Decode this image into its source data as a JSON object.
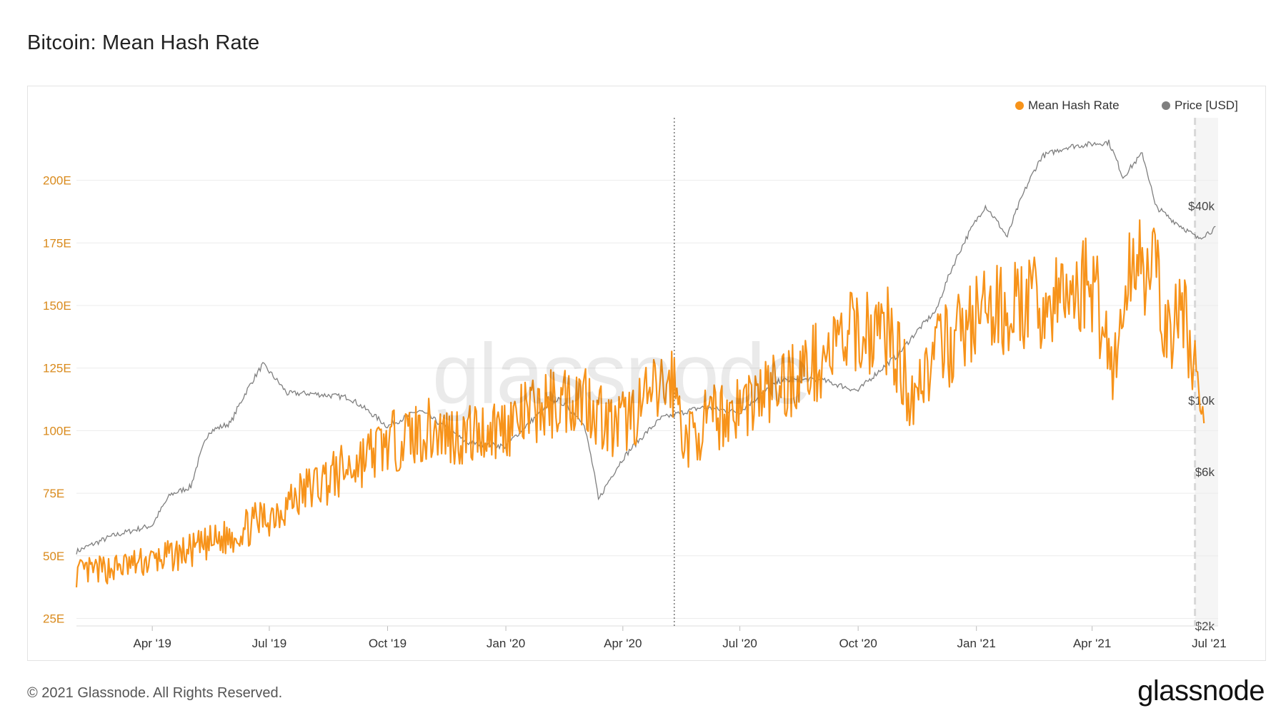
{
  "title": "Bitcoin: Mean Hash Rate",
  "legend": [
    {
      "label": "Mean Hash Rate",
      "color": "#f7931a"
    },
    {
      "label": "Price [USD]",
      "color": "#7f7f7f"
    }
  ],
  "footer": {
    "copyright": "© 2021 Glassnode. All Rights Reserved.",
    "logo": "glassnode"
  },
  "watermark": "glassnode",
  "colors": {
    "hash": "#f7931a",
    "price": "#7f7f7f",
    "grid": "#ececec"
  },
  "chart_data": {
    "type": "line",
    "x_ticks": [
      "Apr '19",
      "Jul '19",
      "Oct '19",
      "Jan '20",
      "Apr '20",
      "Jul '20",
      "Oct '20",
      "Jan '21",
      "Apr '21",
      "Jul '21"
    ],
    "y_left_ticks": [
      "25E",
      "50E",
      "75E",
      "100E",
      "125E",
      "150E",
      "175E",
      "200E"
    ],
    "y_left_values": [
      25,
      50,
      75,
      100,
      125,
      150,
      175,
      200
    ],
    "y_right_ticks": [
      "$2k",
      "$6k",
      "$10k",
      "$40k"
    ],
    "y_right_values": [
      2000,
      6000,
      10000,
      40000
    ],
    "y_left_scale": "linear",
    "y_right_scale": "log",
    "grid": true,
    "legend_position": "top-right",
    "x_range": [
      "2019-02-01",
      "2021-07-08"
    ],
    "ylim_left": [
      22,
      225
    ],
    "ylim_right": [
      2000,
      75000
    ],
    "annotations": [
      {
        "type": "vertical-dotted-line",
        "date": "2020-05-11"
      },
      {
        "type": "vertical-dashed-line",
        "date": "2021-06-20"
      }
    ],
    "series": [
      {
        "name": "Mean Hash Rate",
        "axis": "left",
        "color": "#f7931a",
        "points": [
          [
            "2019-02-01",
            43
          ],
          [
            "2019-03-01",
            45
          ],
          [
            "2019-04-01",
            48
          ],
          [
            "2019-05-01",
            52
          ],
          [
            "2019-06-01",
            58
          ],
          [
            "2019-07-01",
            66
          ],
          [
            "2019-08-01",
            77
          ],
          [
            "2019-09-01",
            85
          ],
          [
            "2019-10-01",
            95
          ],
          [
            "2019-11-01",
            100
          ],
          [
            "2019-12-01",
            98
          ],
          [
            "2020-01-01",
            102
          ],
          [
            "2020-02-01",
            110
          ],
          [
            "2020-03-01",
            115
          ],
          [
            "2020-03-25",
            100
          ],
          [
            "2020-04-20",
            112
          ],
          [
            "2020-05-10",
            120
          ],
          [
            "2020-05-20",
            95
          ],
          [
            "2020-06-01",
            102
          ],
          [
            "2020-07-01",
            110
          ],
          [
            "2020-08-01",
            118
          ],
          [
            "2020-09-01",
            128
          ],
          [
            "2020-10-01",
            140
          ],
          [
            "2020-10-25",
            140
          ],
          [
            "2020-11-10",
            115
          ],
          [
            "2020-12-01",
            130
          ],
          [
            "2021-01-01",
            145
          ],
          [
            "2021-02-01",
            150
          ],
          [
            "2021-03-01",
            150
          ],
          [
            "2021-04-01",
            160
          ],
          [
            "2021-04-18",
            125
          ],
          [
            "2021-05-05",
            175
          ],
          [
            "2021-05-20",
            160
          ],
          [
            "2021-06-01",
            135
          ],
          [
            "2021-06-10",
            150
          ],
          [
            "2021-06-20",
            125
          ],
          [
            "2021-06-27",
            100
          ]
        ]
      },
      {
        "name": "Price [USD]",
        "axis": "right",
        "color": "#7f7f7f",
        "points": [
          [
            "2019-02-01",
            3400
          ],
          [
            "2019-03-01",
            3800
          ],
          [
            "2019-04-01",
            4100
          ],
          [
            "2019-04-15",
            5100
          ],
          [
            "2019-05-01",
            5400
          ],
          [
            "2019-05-15",
            8000
          ],
          [
            "2019-06-01",
            8500
          ],
          [
            "2019-06-26",
            12900
          ],
          [
            "2019-07-15",
            10500
          ],
          [
            "2019-08-01",
            10500
          ],
          [
            "2019-09-01",
            10200
          ],
          [
            "2019-10-01",
            8300
          ],
          [
            "2019-10-26",
            9300
          ],
          [
            "2019-12-01",
            7400
          ],
          [
            "2020-01-01",
            7200
          ],
          [
            "2020-02-10",
            10100
          ],
          [
            "2020-03-01",
            8600
          ],
          [
            "2020-03-13",
            4900
          ],
          [
            "2020-04-01",
            6600
          ],
          [
            "2020-05-01",
            8800
          ],
          [
            "2020-06-01",
            9500
          ],
          [
            "2020-07-01",
            9200
          ],
          [
            "2020-08-01",
            11500
          ],
          [
            "2020-09-01",
            11600
          ],
          [
            "2020-10-01",
            10700
          ],
          [
            "2020-11-01",
            13800
          ],
          [
            "2020-12-01",
            19000
          ],
          [
            "2021-01-08",
            40000
          ],
          [
            "2021-01-25",
            32000
          ],
          [
            "2021-02-21",
            57000
          ],
          [
            "2021-03-13",
            61000
          ],
          [
            "2021-04-14",
            63000
          ],
          [
            "2021-04-25",
            49000
          ],
          [
            "2021-05-10",
            58000
          ],
          [
            "2021-05-20",
            40000
          ],
          [
            "2021-06-01",
            36500
          ],
          [
            "2021-06-22",
            31700
          ],
          [
            "2021-07-06",
            34000
          ]
        ]
      }
    ]
  }
}
